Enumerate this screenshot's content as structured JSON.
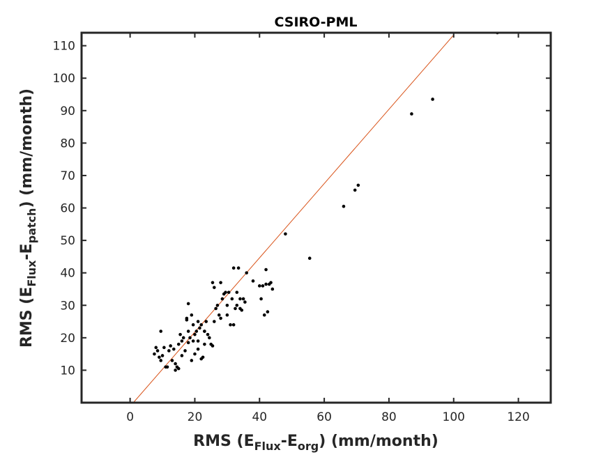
{
  "chart_data": {
    "type": "scatter",
    "title": "CSIRO-PML",
    "xlabel": {
      "main": "RMS (E",
      "sub1": "Flux",
      "mid": "-E",
      "sub2": "org",
      "end": ") (mm/month)"
    },
    "ylabel": {
      "main": "RMS (E",
      "sub1": "Flux",
      "mid": "-E",
      "sub2": "patch",
      "end": ") (mm/month)"
    },
    "xlim": [
      -15,
      130
    ],
    "ylim": [
      0,
      114
    ],
    "xticks": [
      "0",
      "20",
      "40",
      "60",
      "80",
      "100",
      "120"
    ],
    "yticks": [
      "10",
      "20",
      "30",
      "40",
      "50",
      "60",
      "70",
      "80",
      "90",
      "100",
      "110"
    ],
    "grid": false,
    "reference_line": {
      "x": [
        1,
        100
      ],
      "y": [
        0,
        113.3
      ],
      "color": "#d95319"
    },
    "point_color": "#000000",
    "series": [
      {
        "x": [
          7.5,
          8.5,
          9,
          9.5,
          10,
          10.5,
          11,
          12,
          12.5,
          13,
          13.5,
          14,
          14.5,
          15,
          15.5,
          16,
          16,
          16.5,
          17,
          17.5,
          18,
          18,
          18.5,
          19,
          19,
          19.5,
          20,
          20,
          20.5,
          21,
          21,
          21.5,
          22,
          22,
          22.5,
          23,
          23,
          23.5,
          24,
          24.5,
          25,
          25.5,
          26,
          26,
          26.5,
          27,
          27.5,
          28,
          28.5,
          29,
          29.5,
          30,
          30.5,
          31,
          31.5,
          32,
          32.5,
          33,
          33.5,
          34,
          34.5,
          35,
          35.5,
          38,
          40,
          40.5,
          41,
          41.5,
          42,
          42.5,
          43,
          43.5,
          44,
          8,
          9.5,
          11.5,
          14,
          15,
          17.5,
          18,
          19.5,
          21,
          23,
          25.5,
          28,
          30,
          32,
          33,
          34,
          36,
          42,
          48,
          55.5,
          66,
          69.5,
          70.5,
          87,
          93.5,
          113.5
        ],
        "y": [
          15,
          16,
          14,
          22,
          14.5,
          17,
          11,
          16,
          17.5,
          13,
          16.5,
          12,
          11,
          18,
          21,
          14.5,
          19,
          20,
          16,
          25.5,
          18.5,
          22,
          20,
          13,
          27,
          24,
          15,
          21,
          22,
          25,
          19,
          23,
          24,
          13.5,
          14,
          22,
          18,
          25,
          21,
          20,
          18,
          37,
          25,
          35.5,
          29,
          30,
          27,
          37,
          32,
          33.5,
          34,
          30,
          34,
          24,
          32,
          24,
          29,
          30,
          41.5,
          32,
          28.5,
          32,
          31,
          37.5,
          36,
          32,
          36,
          27,
          41,
          28,
          36.5,
          37,
          35,
          17,
          13,
          11,
          10,
          10.5,
          26,
          30.5,
          19,
          16.5,
          22,
          17.5,
          26,
          27,
          41.5,
          34,
          29,
          40,
          36.5,
          52,
          44.5,
          60.5,
          65.5,
          67,
          89,
          93.5,
          114
        ]
      }
    ]
  }
}
